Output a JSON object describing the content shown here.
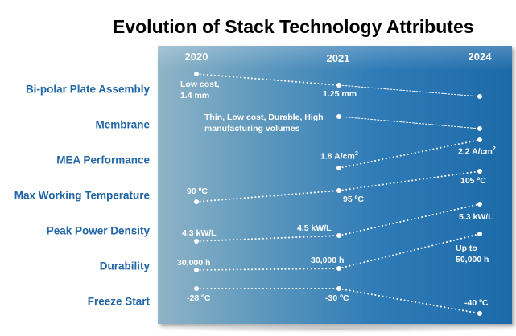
{
  "title": "Evolution of Stack Technology Attributes",
  "years": [
    "2020",
    "2021",
    "2024"
  ],
  "rows": [
    {
      "label": "Bi-polar Plate Assembly",
      "v2020_l1": "Low cost,",
      "v2020_l2": "1.4 mm",
      "v2021": "1.25 mm"
    },
    {
      "label": "Membrane",
      "v2021_l1": "Thin, Low cost, Durable, High",
      "v2021_l2": "manufacturing volumes"
    },
    {
      "label": "MEA Performance",
      "v2021": "1.8 A/cm",
      "v2024": "2.2 A/cm"
    },
    {
      "label": "Max Working Temperature",
      "v2020": "90 ºC",
      "v2021": "95 ºC",
      "v2024": "105 ºC"
    },
    {
      "label": "Peak Power Density",
      "v2020": "4.3 kW/L",
      "v2021": "4.5 kW/L",
      "v2024": "5.3 kW/L"
    },
    {
      "label": "Durability",
      "v2020": "30,000 h",
      "v2021": "30,000 h",
      "v2024_l1": "Up to",
      "v2024_l2": "50,000 h"
    },
    {
      "label": "Freeze Start",
      "v2020": "-28 ºC",
      "v2021": "-30 ºC",
      "v2024": "-40 ºC"
    }
  ],
  "superscript": "2"
}
